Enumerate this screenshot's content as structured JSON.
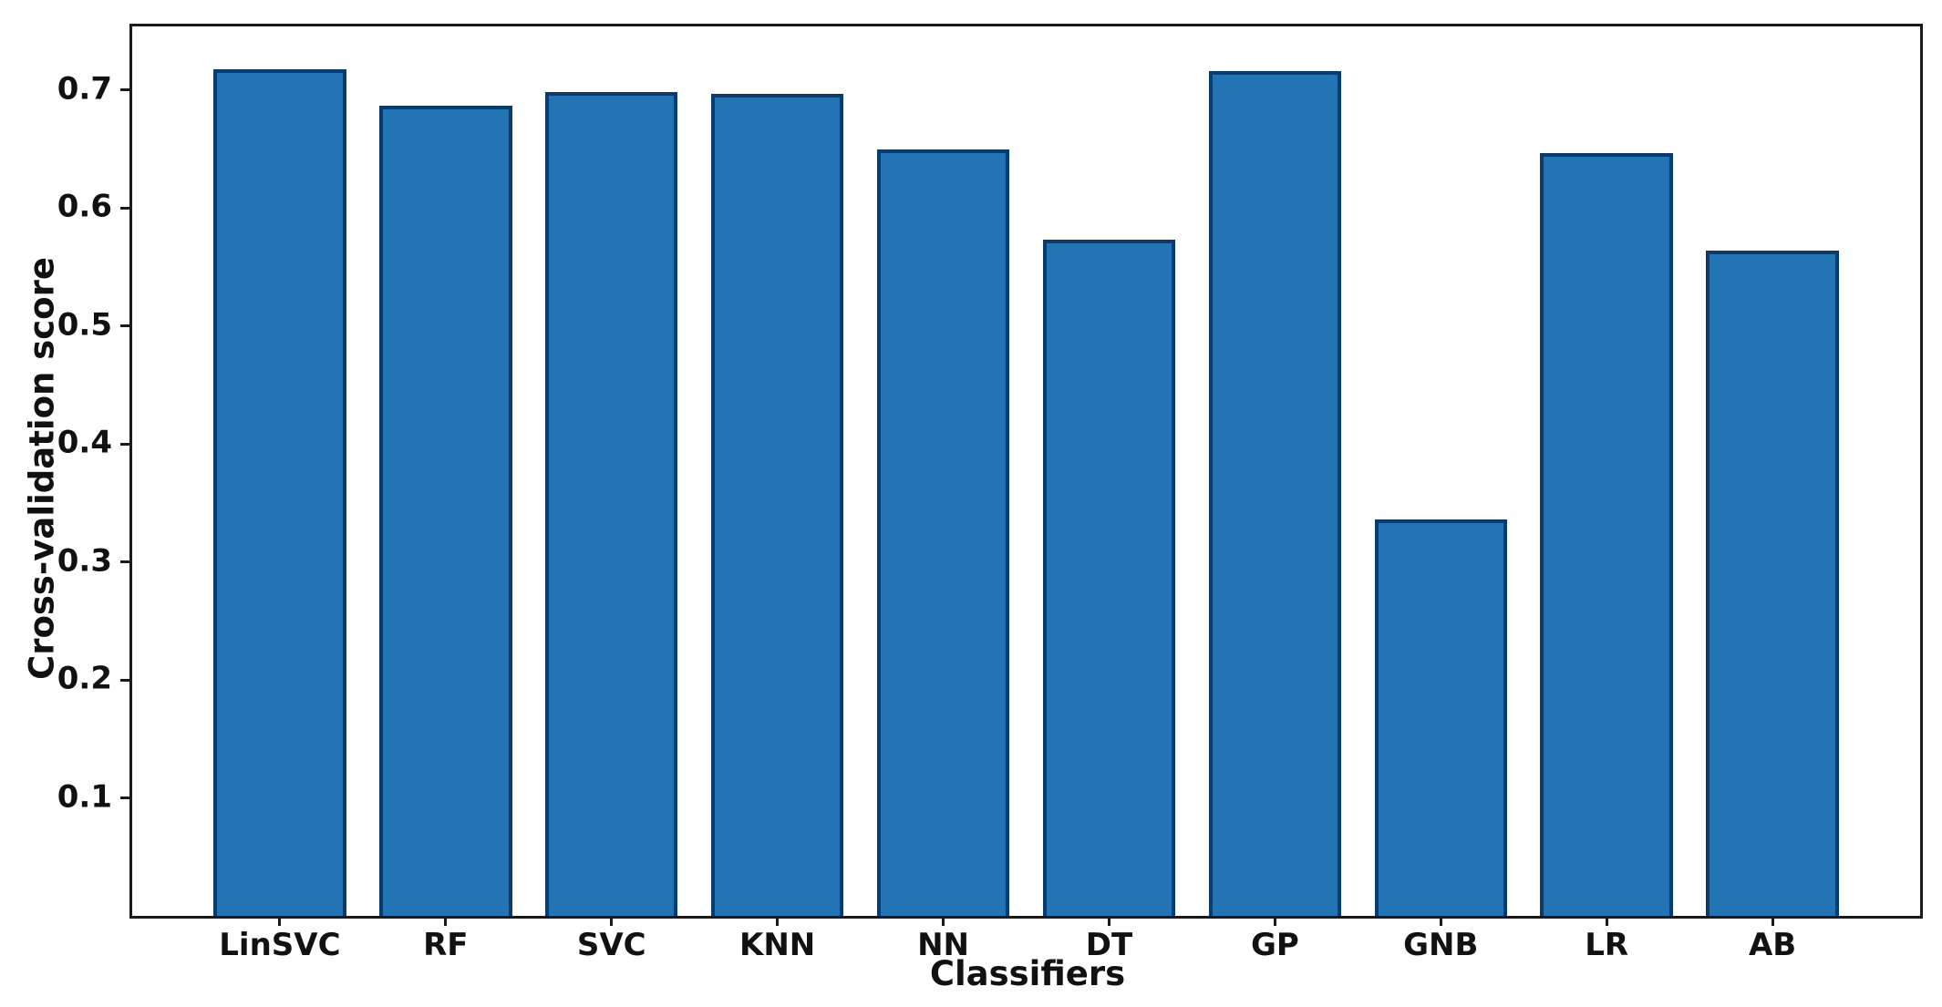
{
  "chart_data": {
    "type": "bar",
    "title": "",
    "xlabel": "Classifiers",
    "ylabel": "Cross-validation score",
    "categories": [
      "LinSVC",
      "RF",
      "SVC",
      "KNN",
      "NN",
      "DT",
      "GP",
      "GNB",
      "LR",
      "AB"
    ],
    "values": [
      0.718,
      0.687,
      0.698,
      0.697,
      0.65,
      0.573,
      0.716,
      0.336,
      0.647,
      0.564
    ],
    "y_ticks": [
      0.1,
      0.2,
      0.3,
      0.4,
      0.5,
      0.6,
      0.7
    ],
    "y_tick_decimals": 1,
    "ylim": [
      0,
      0.754
    ],
    "bar_width_fraction": 0.8,
    "bar_color": "#2274b5",
    "bar_edge_color": "#0b3a6d",
    "spine_color": "#1a1a1a",
    "grid": false,
    "legend": null
  }
}
